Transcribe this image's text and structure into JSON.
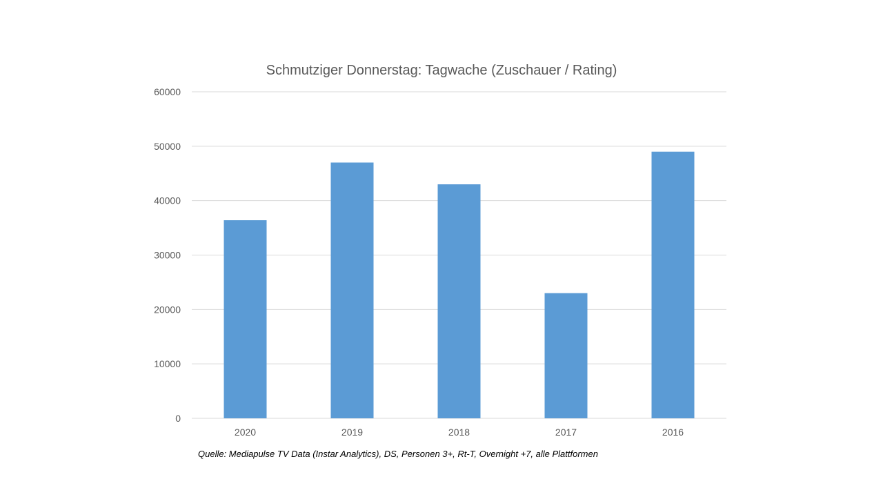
{
  "chart_data": {
    "type": "bar",
    "title": "Schmutziger Donnerstag: Tagwache (Zuschauer / Rating)",
    "xlabel": "",
    "ylabel": "",
    "categories": [
      "2020",
      "2019",
      "2018",
      "2017",
      "2016"
    ],
    "values": [
      36400,
      47000,
      43000,
      23000,
      49000
    ],
    "ylim": [
      0,
      60000
    ],
    "yticks": [
      "0",
      "10000",
      "20000",
      "30000",
      "40000",
      "50000",
      "60000"
    ],
    "grid": true,
    "legend": "none",
    "bar_color": "#5B9BD5",
    "grid_color": "#D9D9D9"
  },
  "source_note": "Quelle: Mediapulse TV Data (Instar Analytics), DS, Personen 3+, Rt-T, Overnight +7, alle Plattformen"
}
